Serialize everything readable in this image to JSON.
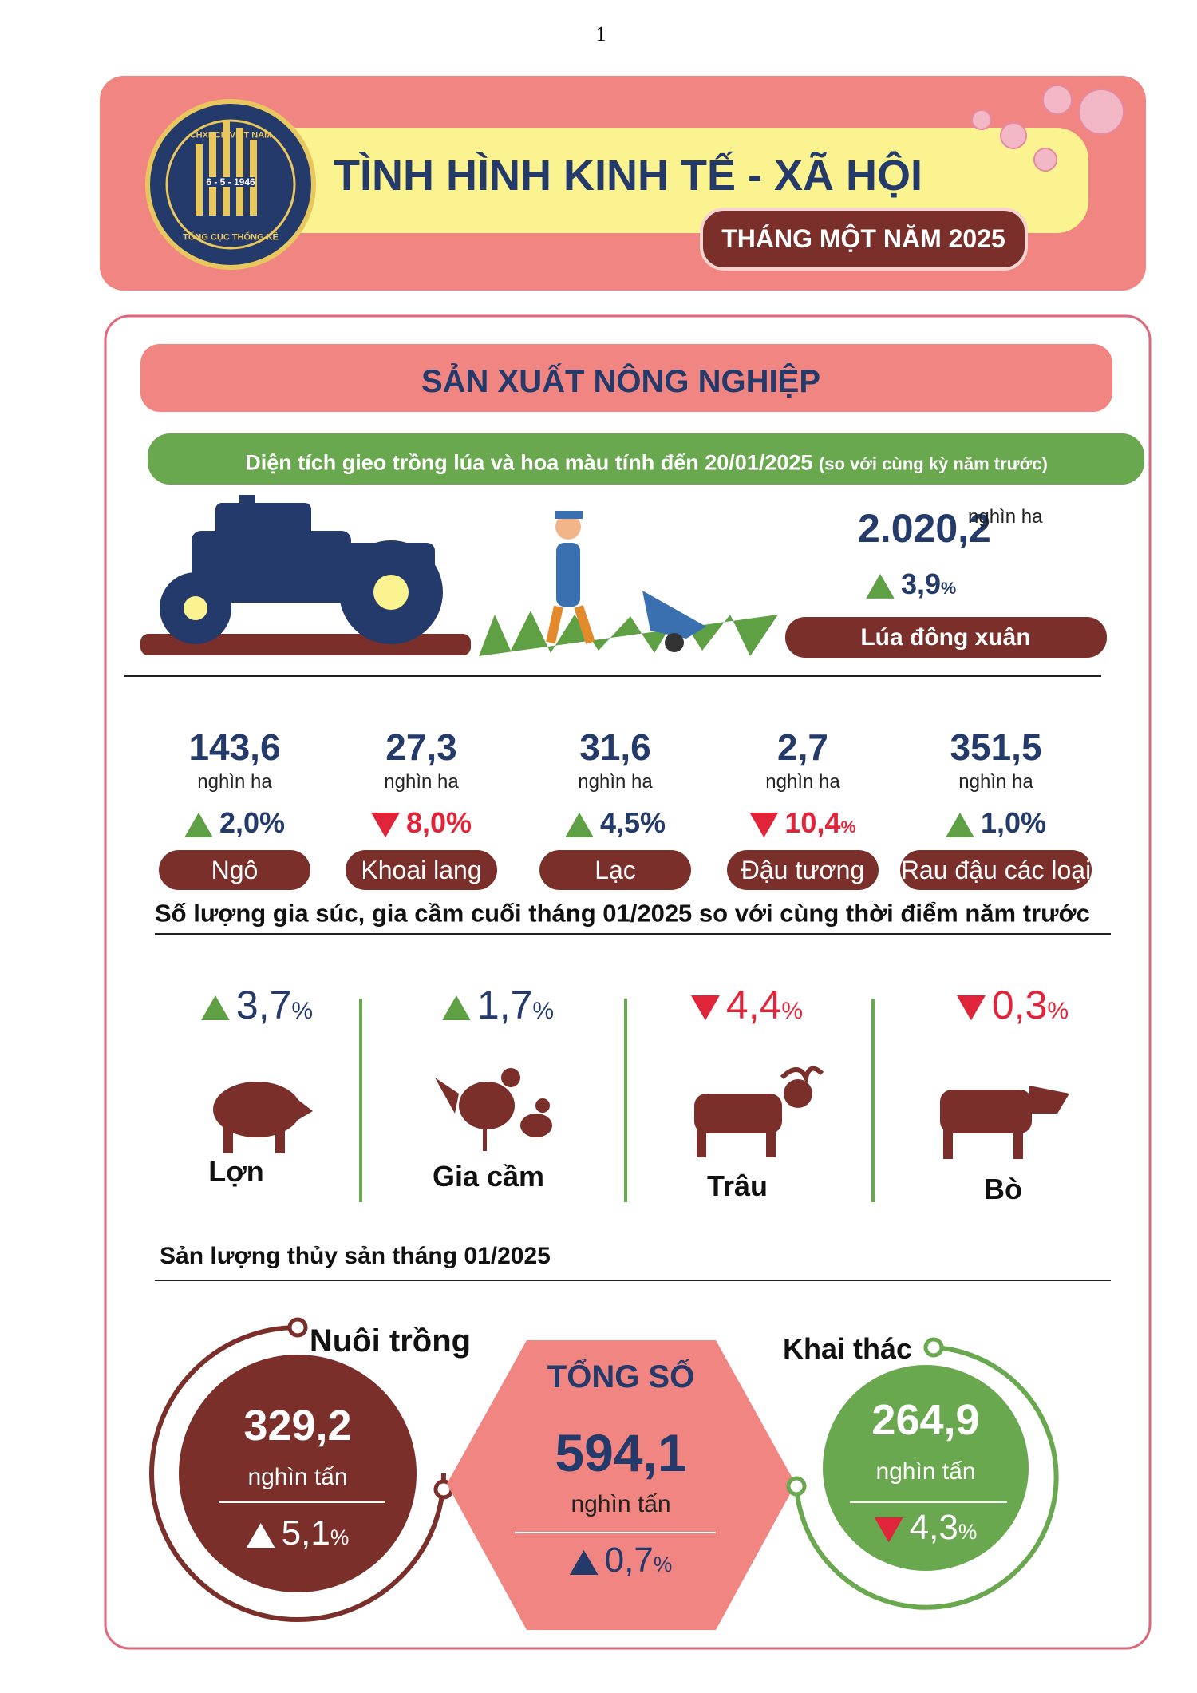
{
  "page_number": "1",
  "header": {
    "logo": {
      "top": "CHXHCN VIỆT NAM",
      "date": "6 - 5 - 1946",
      "bottom": "TỔNG CỤC THỐNG KÊ"
    },
    "title": "TÌNH HÌNH KINH TẾ - XÃ HỘI",
    "subtitle": "THÁNG MỘT NĂM 2025"
  },
  "section": {
    "title": "SẢN XUẤT NÔNG NGHIỆP",
    "planting": {
      "heading": "Diện tích gieo trồng lúa và hoa màu tính đến 20/01/2025",
      "heading_note": "(so với cùng kỳ năm trước)",
      "rice": {
        "value": "2.020,2",
        "unit": "nghìn ha",
        "change": "3,9",
        "percent": "%",
        "direction": "up",
        "label": "Lúa đông xuân"
      },
      "crops": [
        {
          "value": "143,6",
          "unit": "nghìn ha",
          "change": "2,0%",
          "direction": "up",
          "label": "Ngô"
        },
        {
          "value": "27,3",
          "unit": "nghìn ha",
          "change": "8,0%",
          "direction": "down",
          "label": "Khoai lang"
        },
        {
          "value": "31,6",
          "unit": "nghìn ha",
          "change": "4,5%",
          "direction": "up",
          "label": "Lạc"
        },
        {
          "value": "2,7",
          "unit": "nghìn ha",
          "change": "10,4",
          "percent": "%",
          "direction": "down",
          "label": "Đậu tương"
        },
        {
          "value": "351,5",
          "unit": "nghìn ha",
          "change": "1,0%",
          "direction": "up",
          "label": "Rau đậu các loại"
        }
      ]
    },
    "livestock": {
      "heading": "Số lượng gia súc, gia cầm cuối tháng 01/2025 so với cùng thời điểm năm trước",
      "items": [
        {
          "change": "3,7",
          "percent": "%",
          "direction": "up",
          "label": "Lợn"
        },
        {
          "change": "1,7",
          "percent": "%",
          "direction": "up",
          "label": "Gia cầm"
        },
        {
          "change": "4,4",
          "percent": "%",
          "direction": "down",
          "label": "Trâu"
        },
        {
          "change": "0,3",
          "percent": "%",
          "direction": "down",
          "label": "Bò"
        }
      ]
    },
    "fishery": {
      "heading": "Sản lượng thủy sản tháng 01/2025",
      "aquaculture": {
        "label": "Nuôi trồng",
        "value": "329,2",
        "unit": "nghìn tấn",
        "change": "5,1",
        "percent": "%",
        "direction": "up"
      },
      "total": {
        "label": "TỔNG SỐ",
        "value": "594,1",
        "unit": "nghìn tấn",
        "change": "0,7",
        "percent": "%",
        "direction": "up"
      },
      "capture": {
        "label": "Khai thác",
        "value": "264,9",
        "unit": "nghìn tấn",
        "change": "4,3",
        "percent": "%",
        "direction": "down"
      }
    }
  }
}
